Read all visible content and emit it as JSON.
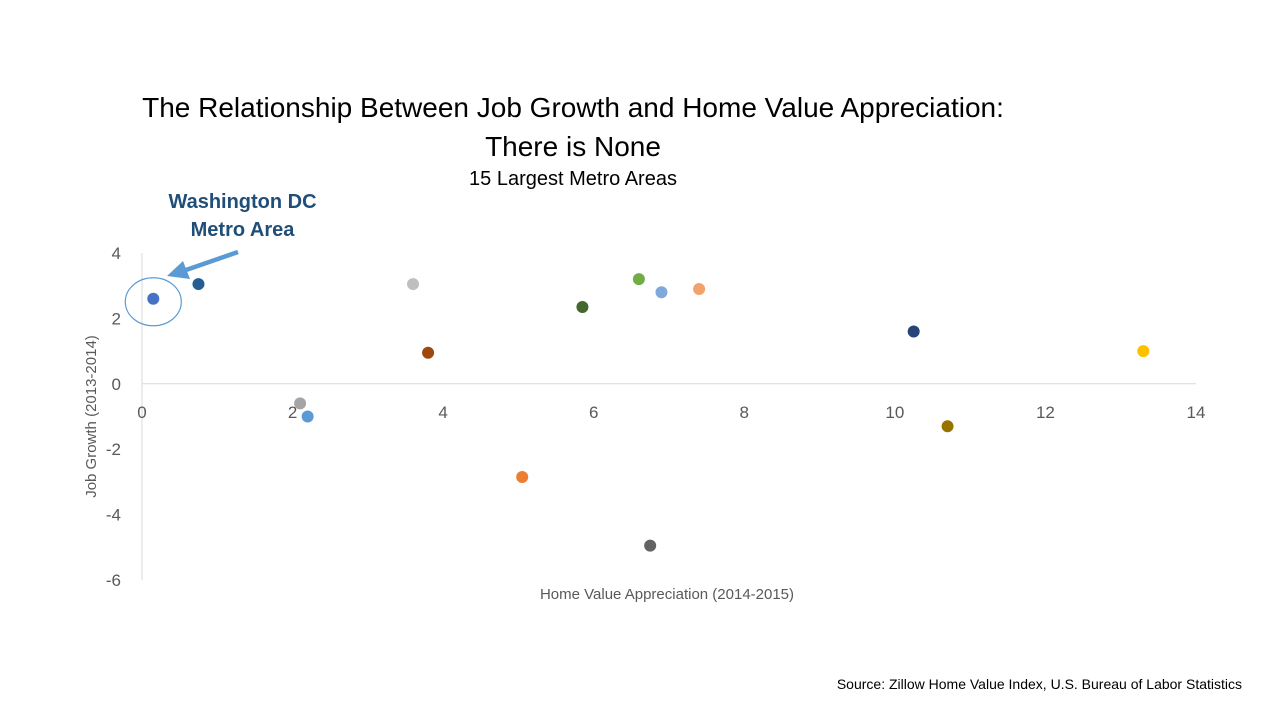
{
  "title_lines": [
    "The Relationship Between Job Growth and Home Value Appreciation:",
    "There is None"
  ],
  "subtitle": "15 Largest Metro Areas",
  "annotation": {
    "lines": [
      "Washington DC",
      "Metro Area"
    ],
    "color": "#1f4e79",
    "arrow_color": "#5b9bd5"
  },
  "source": "Source: Zillow Home Value Index, U.S. Bureau of Labor Statistics",
  "chart_data": {
    "type": "scatter",
    "title": "The Relationship Between Job Growth and Home Value Appreciation: There is None",
    "subtitle": "15 Largest Metro Areas",
    "xlabel": "Home Value Appreciation (2014-2015)",
    "ylabel": "Job Growth (2013-2014)",
    "xlim": [
      0,
      14
    ],
    "ylim": [
      -6,
      4
    ],
    "xticks": [
      0,
      2,
      4,
      6,
      8,
      10,
      12,
      14
    ],
    "yticks": [
      4,
      2,
      0,
      -2,
      -4,
      -6
    ],
    "grid": false,
    "legend": "none",
    "highlight_index": 0,
    "points": [
      {
        "x": 0.15,
        "y": 2.6,
        "color": "#4472c4"
      },
      {
        "x": 0.75,
        "y": 3.05,
        "color": "#255e91"
      },
      {
        "x": 2.1,
        "y": -0.6,
        "color": "#a5a5a5"
      },
      {
        "x": 2.2,
        "y": -1.0,
        "color": "#5b9bd5"
      },
      {
        "x": 3.6,
        "y": 3.05,
        "color": "#bfbfbf"
      },
      {
        "x": 3.8,
        "y": 0.95,
        "color": "#9e480e"
      },
      {
        "x": 5.05,
        "y": -2.85,
        "color": "#ed7d31"
      },
      {
        "x": 5.85,
        "y": 2.35,
        "color": "#43682b"
      },
      {
        "x": 6.6,
        "y": 3.2,
        "color": "#70ad47"
      },
      {
        "x": 6.75,
        "y": -4.95,
        "color": "#636363"
      },
      {
        "x": 6.9,
        "y": 2.8,
        "color": "#7fa9dc"
      },
      {
        "x": 7.4,
        "y": 2.9,
        "color": "#f4a26b"
      },
      {
        "x": 10.25,
        "y": 1.6,
        "color": "#264478"
      },
      {
        "x": 10.7,
        "y": -1.3,
        "color": "#997300"
      },
      {
        "x": 13.3,
        "y": 1.0,
        "color": "#ffc000"
      }
    ]
  }
}
